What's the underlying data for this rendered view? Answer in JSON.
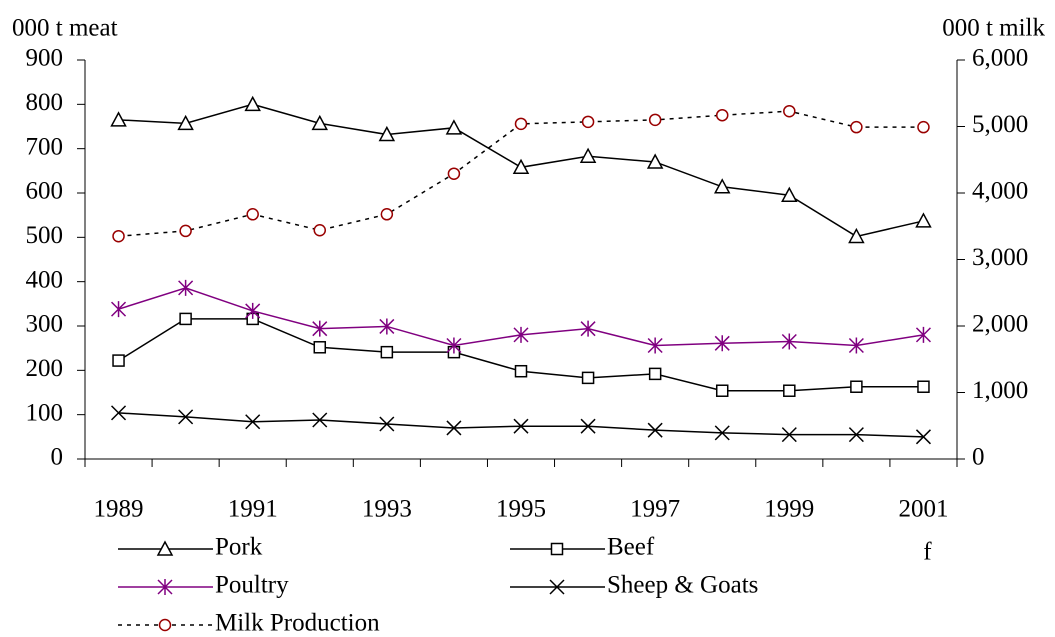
{
  "chart_data": {
    "type": "line",
    "y_label": "000 t meat",
    "y2_label": "000 t milk",
    "categories": [
      "1989",
      null,
      "1991",
      null,
      "1993",
      null,
      "1995",
      null,
      "1997",
      null,
      "1999",
      null,
      "2001"
    ],
    "x_annotation": "f",
    "series": [
      {
        "name": "Pork",
        "color": "#000000",
        "marker": "triangle",
        "values": [
          765,
          757,
          800,
          757,
          732,
          747,
          658,
          683,
          670,
          614,
          595,
          502,
          537
        ]
      },
      {
        "name": "Beef",
        "color": "#000000",
        "marker": "square",
        "values": [
          222,
          316,
          316,
          252,
          241,
          241,
          198,
          183,
          192,
          154,
          154,
          163,
          163
        ]
      },
      {
        "name": "Poultry",
        "color": "#800080",
        "marker": "asterisk",
        "values": [
          338,
          386,
          334,
          294,
          299,
          256,
          280,
          294,
          256,
          261,
          265,
          256,
          280
        ]
      },
      {
        "name": "Sheep & Goats",
        "color": "#000000",
        "marker": "x",
        "values": [
          104,
          95,
          84,
          88,
          79,
          70,
          74,
          74,
          65,
          59,
          55,
          55,
          50
        ]
      },
      {
        "name": "Milk Production",
        "color": "#000000",
        "marker": "circle",
        "marker_color": "#990000",
        "dash": "dotted",
        "axis": "y2",
        "values": [
          3350,
          3430,
          3680,
          3440,
          3680,
          4290,
          5040,
          5070,
          5100,
          5170,
          5230,
          4990,
          4990
        ]
      }
    ],
    "ylim": [
      0,
      900
    ],
    "yticks": [
      0,
      100,
      200,
      300,
      400,
      500,
      600,
      700,
      800,
      900
    ],
    "y2lim": [
      0,
      6000
    ],
    "y2ticks": [
      0,
      {
        "value": 1000,
        "label": "1,000"
      },
      {
        "value": 2000,
        "label": "2,000"
      },
      {
        "value": 3000,
        "label": "3,000"
      },
      {
        "value": 4000,
        "label": "4,000"
      },
      {
        "value": 5000,
        "label": "5,000"
      },
      {
        "value": 6000,
        "label": "6,000"
      }
    ],
    "legend": "bottom"
  }
}
